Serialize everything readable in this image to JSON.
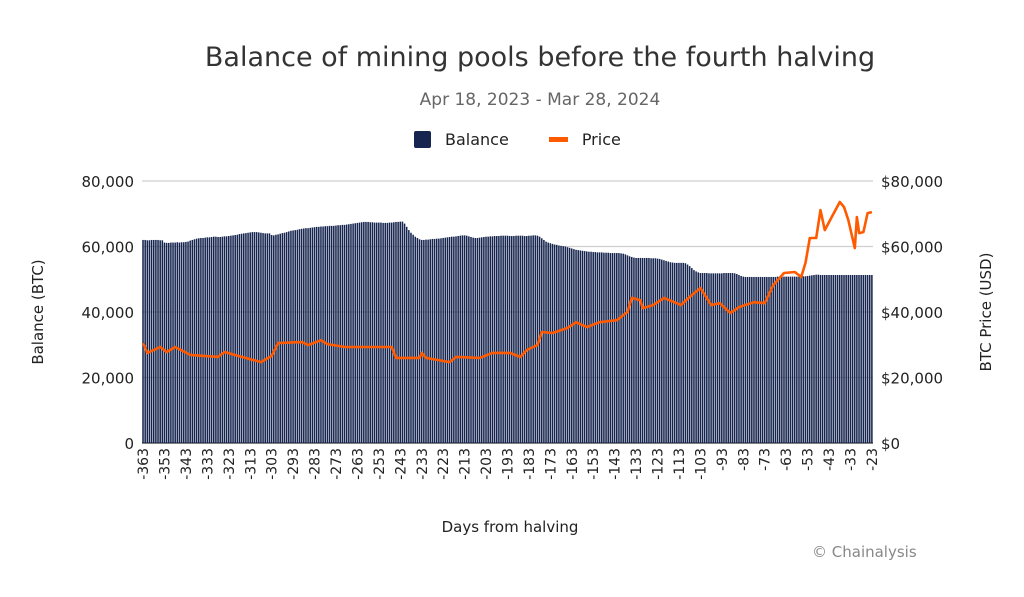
{
  "chart_data": {
    "type": "bar+line",
    "title": "Balance of mining pools before the fourth halving",
    "subtitle": "Apr 18, 2023 - Mar 28, 2024",
    "xlabel": "Days from halving",
    "ylabel": "Balance (BTC)",
    "y2label": "BTC Price (USD)",
    "ylim": [
      0,
      80000
    ],
    "y2lim": [
      0,
      80000
    ],
    "yticks": [
      "0",
      "20,000",
      "40,000",
      "60,000",
      "80,000"
    ],
    "y2ticks": [
      "$0",
      "$20,000",
      "$40,000",
      "$60,000",
      "$80,000"
    ],
    "x_start_day": -363,
    "xticks": [
      "-363",
      "-353",
      "-343",
      "-333",
      "-323",
      "-313",
      "-303",
      "-293",
      "-283",
      "-273",
      "-263",
      "-253",
      "-243",
      "-233",
      "-223",
      "-213",
      "-203",
      "-193",
      "-183",
      "-173",
      "-163",
      "-153",
      "-143",
      "-133",
      "-123",
      "-113",
      "-103",
      "-93",
      "-83",
      "-73",
      "-63",
      "-53",
      "-43",
      "-33",
      "-23"
    ],
    "grid": true,
    "legend": "top",
    "series": [
      {
        "name": "Balance",
        "type": "bar",
        "axis": "left",
        "color": "#16254f",
        "values": [
          62000,
          62000,
          61900,
          61900,
          62000,
          62000,
          62000,
          62000,
          61900,
          61900,
          61200,
          61100,
          61100,
          61200,
          61200,
          61200,
          61300,
          61200,
          61300,
          61300,
          61400,
          61500,
          61800,
          62000,
          62200,
          62400,
          62500,
          62600,
          62600,
          62700,
          62800,
          62800,
          62900,
          63000,
          63000,
          62900,
          62900,
          63000,
          63100,
          63100,
          63200,
          63300,
          63400,
          63500,
          63600,
          63800,
          63900,
          64000,
          64100,
          64200,
          64300,
          64400,
          64400,
          64400,
          64300,
          64200,
          64100,
          64000,
          64000,
          64000,
          63500,
          63400,
          63600,
          63700,
          63900,
          64100,
          64200,
          64400,
          64600,
          64800,
          64900,
          65000,
          65100,
          65300,
          65400,
          65500,
          65600,
          65600,
          65700,
          65800,
          65900,
          66000,
          66000,
          66100,
          66100,
          66200,
          66200,
          66300,
          66300,
          66300,
          66400,
          66500,
          66500,
          66600,
          66600,
          66700,
          66800,
          66900,
          67000,
          67100,
          67200,
          67300,
          67400,
          67500,
          67500,
          67500,
          67400,
          67400,
          67300,
          67300,
          67300,
          67300,
          67200,
          67200,
          67200,
          67300,
          67300,
          67400,
          67500,
          67500,
          67600,
          67600,
          67000,
          66000,
          65000,
          64200,
          63600,
          63000,
          62600,
          62200,
          62000,
          62000,
          62100,
          62100,
          62200,
          62300,
          62300,
          62400,
          62400,
          62500,
          62600,
          62700,
          62800,
          62900,
          63000,
          63000,
          63100,
          63200,
          63300,
          63400,
          63400,
          63300,
          63100,
          62900,
          62700,
          62600,
          62600,
          62700,
          62800,
          62900,
          63000,
          63000,
          63100,
          63100,
          63200,
          63200,
          63200,
          63300,
          63300,
          63300,
          63300,
          63200,
          63200,
          63200,
          63300,
          63300,
          63300,
          63300,
          63200,
          63200,
          63300,
          63300,
          63400,
          63400,
          63300,
          63000,
          62500,
          62000,
          61500,
          61200,
          61000,
          60800,
          60600,
          60500,
          60300,
          60200,
          60100,
          60000,
          59800,
          59600,
          59400,
          59200,
          59000,
          58900,
          58800,
          58700,
          58600,
          58500,
          58400,
          58400,
          58300,
          58300,
          58200,
          58200,
          58200,
          58100,
          58100,
          58100,
          58000,
          58000,
          58000,
          58000,
          58000,
          57900,
          57800,
          57600,
          57300,
          57000,
          56800,
          56600,
          56500,
          56500,
          56500,
          56500,
          56500,
          56500,
          56500,
          56400,
          56400,
          56400,
          56300,
          56200,
          56000,
          55800,
          55600,
          55400,
          55200,
          55100,
          55000,
          55000,
          55000,
          55000,
          55000,
          54900,
          54500,
          54000,
          53400,
          52800,
          52400,
          52100,
          51900,
          51900,
          51900,
          51900,
          51800,
          51800,
          51800,
          51800,
          51800,
          51800,
          51800,
          51900,
          51900,
          51900,
          51900,
          51900,
          51800,
          51600,
          51300,
          51000,
          50800,
          50700,
          50700,
          50700,
          50700,
          50700,
          50700,
          50700,
          50700,
          50700,
          50700,
          50700,
          50700,
          50700,
          50700,
          50700,
          50800,
          50800,
          50800,
          50800,
          50800,
          50800,
          50800,
          50800,
          50800,
          50800,
          50800,
          50900,
          50900,
          50900,
          51000,
          51100,
          51200,
          51300,
          51400,
          51400,
          51300,
          51300,
          51300,
          51300,
          51300,
          51300,
          51300,
          51300,
          51300,
          51300,
          51300,
          51300,
          51300,
          51300,
          51300,
          51300,
          51300,
          51300,
          51300,
          51300,
          51300,
          51300,
          51300,
          51300,
          51300
        ]
      },
      {
        "name": "Price",
        "type": "line",
        "axis": "right",
        "color": "#ff5a00",
        "points": [
          [
            -363,
            30500
          ],
          [
            -361,
            27500
          ],
          [
            -355,
            29300
          ],
          [
            -352,
            27800
          ],
          [
            -348,
            29300
          ],
          [
            -341,
            26900
          ],
          [
            -328,
            26300
          ],
          [
            -325,
            27800
          ],
          [
            -317,
            26300
          ],
          [
            -308,
            24700
          ],
          [
            -303,
            26600
          ],
          [
            -300,
            30500
          ],
          [
            -289,
            30800
          ],
          [
            -286,
            29900
          ],
          [
            -280,
            31400
          ],
          [
            -277,
            30200
          ],
          [
            -269,
            29300
          ],
          [
            -261,
            29300
          ],
          [
            -253,
            29300
          ],
          [
            -247,
            29300
          ],
          [
            -245,
            26000
          ],
          [
            -234,
            26000
          ],
          [
            -233,
            27500
          ],
          [
            -231,
            26000
          ],
          [
            -220,
            24700
          ],
          [
            -217,
            26300
          ],
          [
            -206,
            26000
          ],
          [
            -200,
            27500
          ],
          [
            -192,
            27500
          ],
          [
            -187,
            26300
          ],
          [
            -184,
            28400
          ],
          [
            -179,
            29900
          ],
          [
            -177,
            33900
          ],
          [
            -172,
            33600
          ],
          [
            -165,
            35100
          ],
          [
            -161,
            36900
          ],
          [
            -156,
            35400
          ],
          [
            -150,
            36900
          ],
          [
            -142,
            37500
          ],
          [
            -137,
            40000
          ],
          [
            -135,
            44300
          ],
          [
            -131,
            43600
          ],
          [
            -130,
            41200
          ],
          [
            -125,
            42100
          ],
          [
            -120,
            44300
          ],
          [
            -112,
            42100
          ],
          [
            -108,
            44600
          ],
          [
            -103,
            47300
          ],
          [
            -98,
            42100
          ],
          [
            -94,
            42700
          ],
          [
            -89,
            39700
          ],
          [
            -85,
            41500
          ],
          [
            -78,
            43000
          ],
          [
            -73,
            42700
          ],
          [
            -69,
            48200
          ],
          [
            -64,
            51900
          ],
          [
            -59,
            52200
          ],
          [
            -56,
            50700
          ],
          [
            -54,
            55000
          ],
          [
            -52,
            62600
          ],
          [
            -49,
            62600
          ],
          [
            -47,
            71100
          ],
          [
            -45,
            65000
          ],
          [
            -42,
            68700
          ],
          [
            -38,
            73600
          ],
          [
            -36,
            72000
          ],
          [
            -34,
            68100
          ],
          [
            -31,
            59500
          ],
          [
            -30,
            69000
          ],
          [
            -29,
            64100
          ],
          [
            -27,
            64400
          ],
          [
            -25,
            70200
          ],
          [
            -23,
            70500
          ]
        ]
      }
    ],
    "source": "© Chainalysis"
  }
}
